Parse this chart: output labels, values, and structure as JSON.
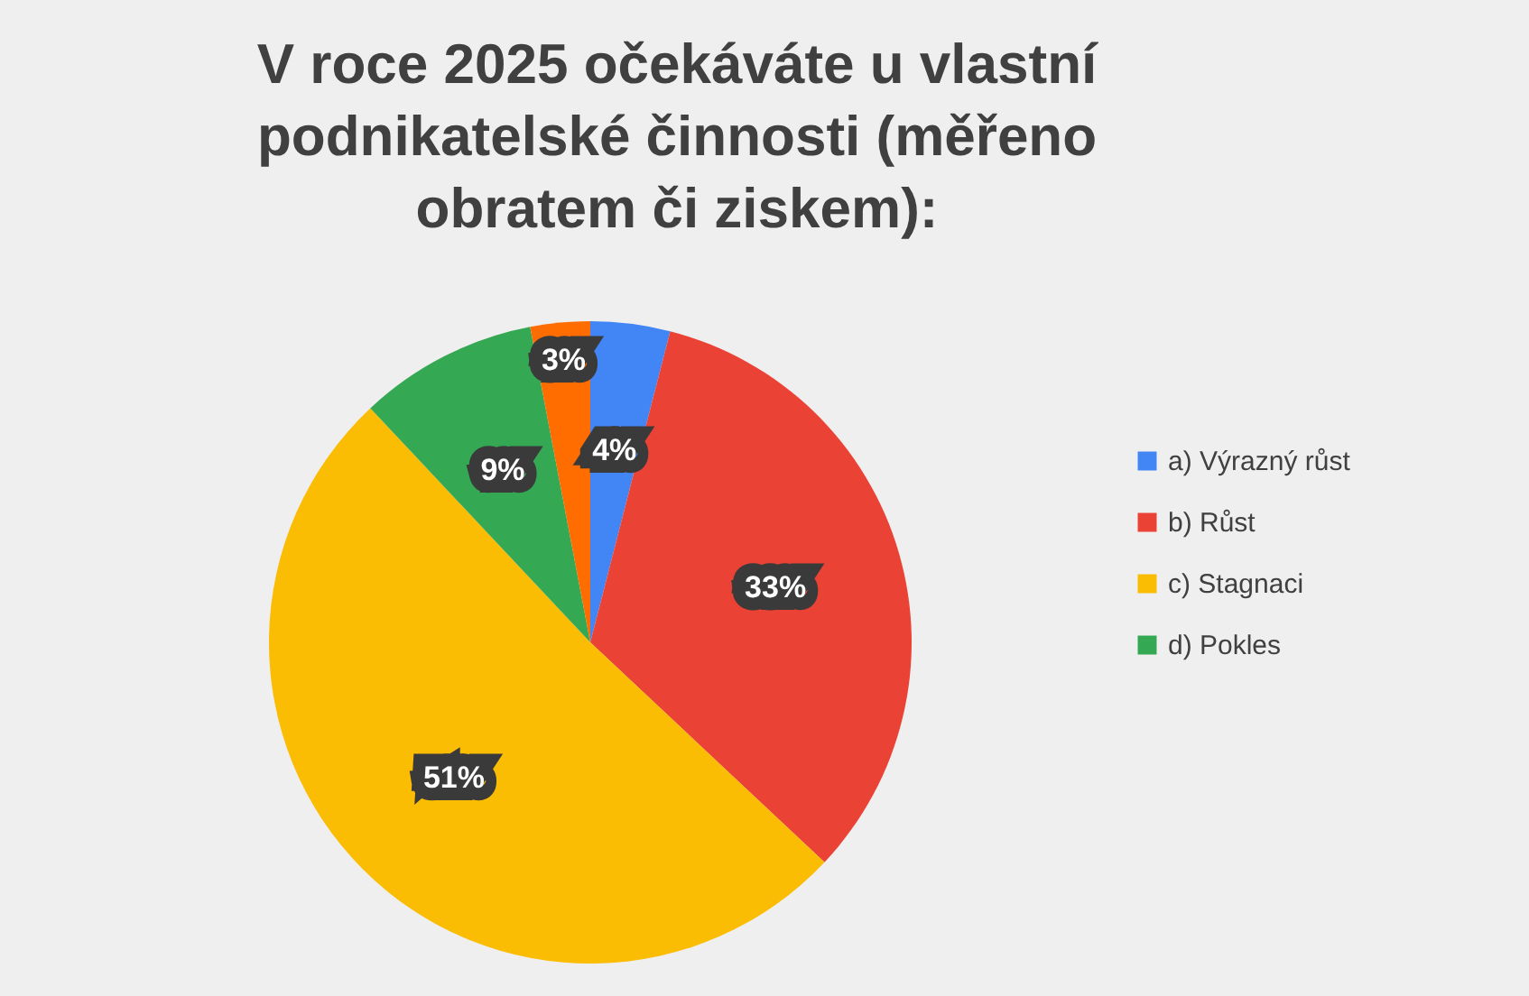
{
  "chart_data": {
    "type": "pie",
    "title": "V roce 2025 očekáváte u vlastní podnikatelské činnosti (měřeno obratem či ziskem):",
    "categories": [
      "a) Výrazný růst",
      "b) Růst",
      "c) Stagnaci",
      "d) Pokles",
      null
    ],
    "values": [
      4,
      33,
      51,
      9,
      3
    ],
    "colors": [
      "#4285f4",
      "#ea4335",
      "#fbbc04",
      "#34a853",
      "#ff6d01"
    ],
    "value_labels": [
      "4%",
      "33%",
      "51%",
      "9%",
      "3%"
    ],
    "legend": "right"
  }
}
